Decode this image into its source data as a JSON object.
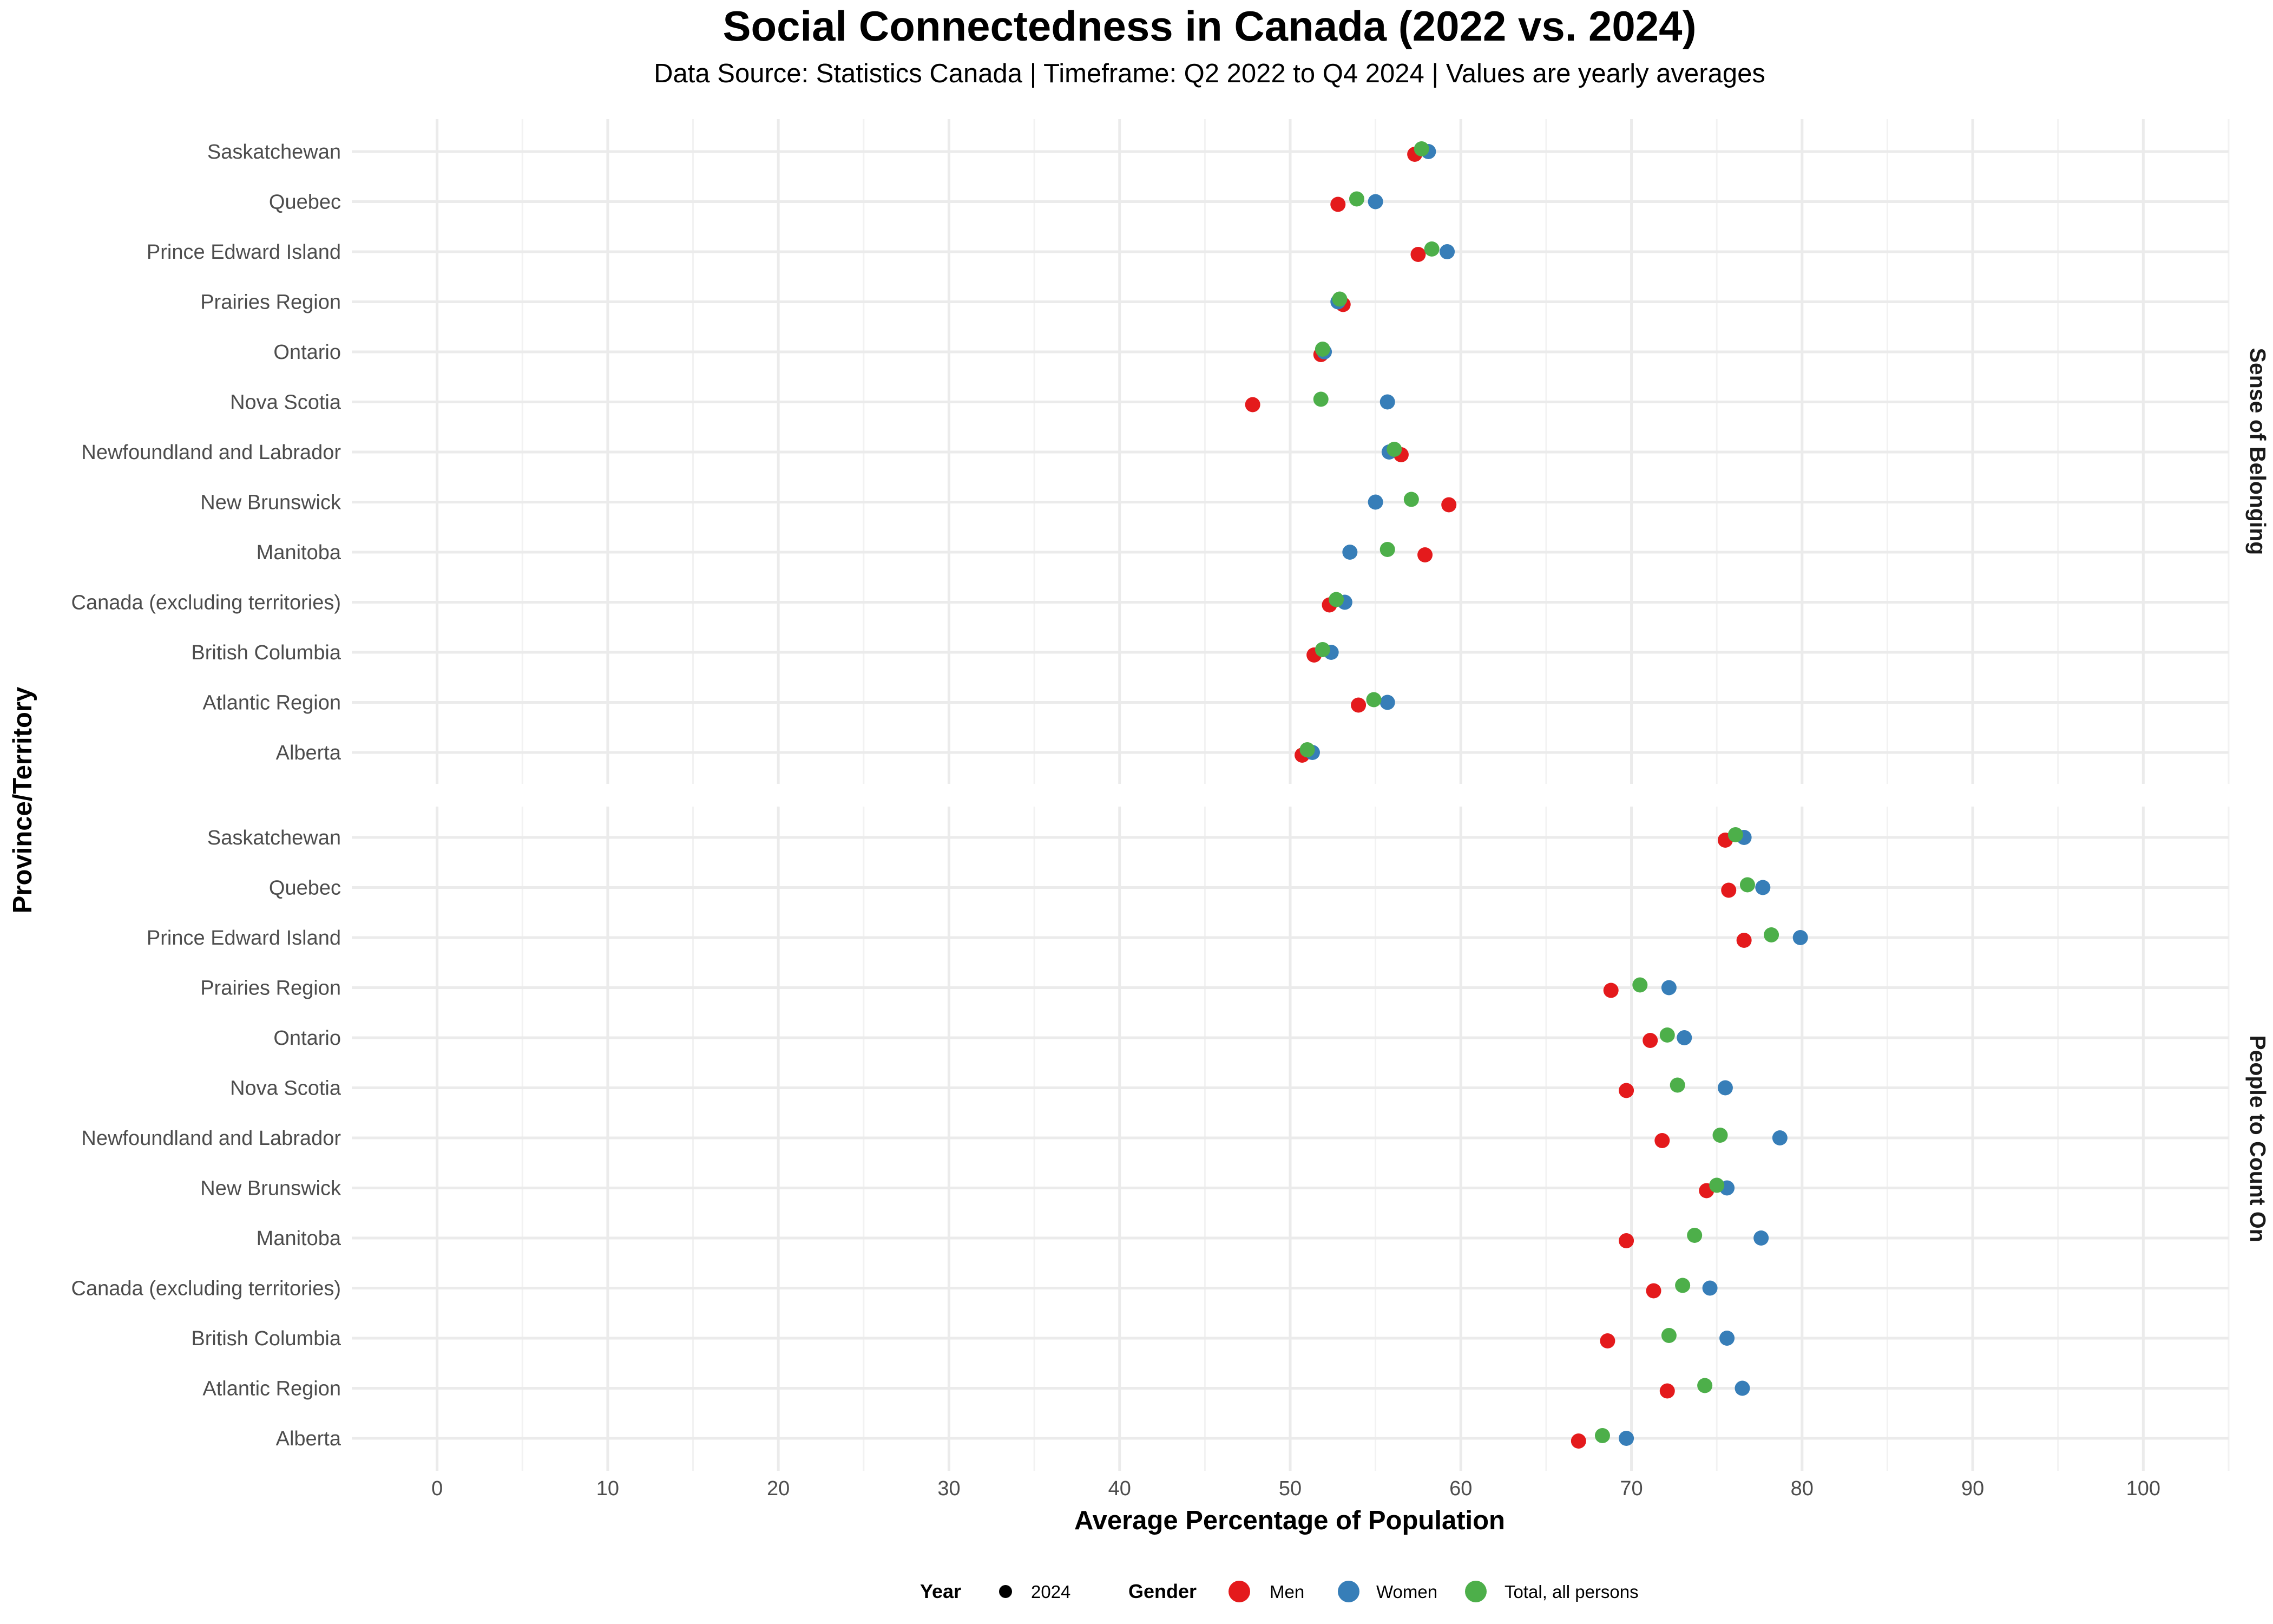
{
  "chart_data": {
    "type": "scatter",
    "title": "Social Connectedness in Canada (2022 vs. 2024)",
    "subtitle": "Data Source: Statistics Canada | Timeframe: Q2 2022 to Q4 2024 | Values are yearly averages",
    "xlabel": "Average Percentage of Population",
    "ylabel": "Province/Territory",
    "xlim": [
      -5,
      105
    ],
    "xticks": [
      0,
      10,
      20,
      30,
      40,
      50,
      60,
      70,
      80,
      90,
      100
    ],
    "categories": [
      "Saskatchewan",
      "Quebec",
      "Prince Edward Island",
      "Prairies Region",
      "Ontario",
      "Nova Scotia",
      "Newfoundland and Labrador",
      "New Brunswick",
      "Manitoba",
      "Canada (excluding territories)",
      "British Columbia",
      "Atlantic Region",
      "Alberta"
    ],
    "colors": {
      "Men": "#e41a1c",
      "Women": "#377eb8",
      "Total, all persons": "#4daf4a"
    },
    "legend": {
      "year_title": "Year",
      "year_items": [
        "2024"
      ],
      "gender_title": "Gender",
      "gender_items": [
        "Men",
        "Women",
        "Total, all persons"
      ],
      "position": "bottom"
    },
    "panels": [
      {
        "label": "Sense of Belonging",
        "series": [
          {
            "name": "Men",
            "values": [
              57.3,
              52.8,
              57.5,
              53.1,
              51.8,
              47.8,
              56.5,
              59.3,
              57.9,
              52.3,
              51.4,
              54.0,
              50.7
            ]
          },
          {
            "name": "Women",
            "values": [
              58.1,
              55.0,
              59.2,
              52.8,
              52.0,
              55.7,
              55.8,
              55.0,
              53.5,
              53.2,
              52.4,
              55.7,
              51.3
            ]
          },
          {
            "name": "Total, all persons",
            "values": [
              57.7,
              53.9,
              58.3,
              52.9,
              51.9,
              51.8,
              56.1,
              57.1,
              55.7,
              52.7,
              51.9,
              54.9,
              51.0
            ]
          }
        ]
      },
      {
        "label": "People to Count On",
        "series": [
          {
            "name": "Men",
            "values": [
              75.5,
              75.7,
              76.6,
              68.8,
              71.1,
              69.7,
              71.8,
              74.4,
              69.7,
              71.3,
              68.6,
              72.1,
              66.9
            ]
          },
          {
            "name": "Women",
            "values": [
              76.6,
              77.7,
              79.9,
              72.2,
              73.1,
              75.5,
              78.7,
              75.6,
              77.6,
              74.6,
              75.6,
              76.5,
              69.7
            ]
          },
          {
            "name": "Total, all persons",
            "values": [
              76.1,
              76.8,
              78.2,
              70.5,
              72.1,
              72.7,
              75.2,
              75.0,
              73.7,
              73.0,
              72.2,
              74.3,
              68.3
            ]
          }
        ]
      }
    ]
  }
}
